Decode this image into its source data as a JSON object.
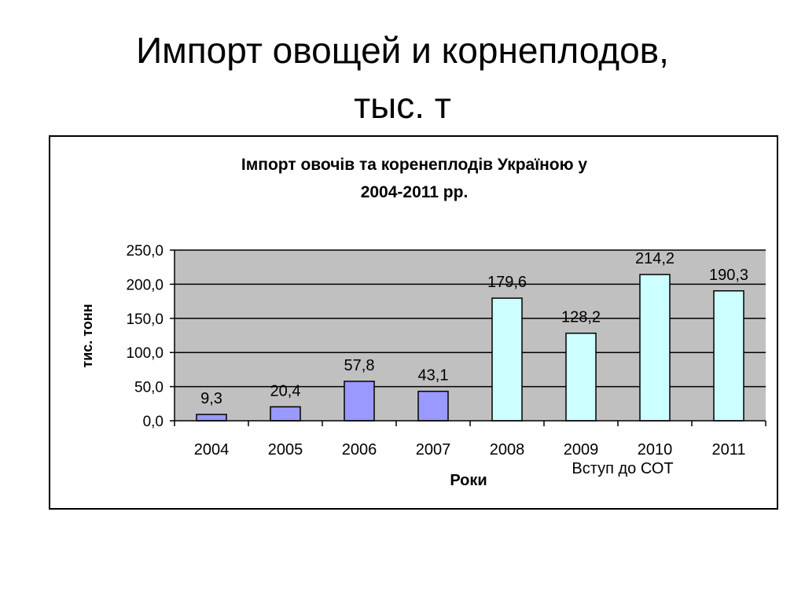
{
  "slide": {
    "title_line1": "Импорт овощей и корнеплодов,",
    "title_line2": "тыс. т"
  },
  "chart_data": {
    "type": "bar",
    "title_line1": "Імпорт овочів та коренеплодів Україною у",
    "title_line2": "2004-2011 рр.",
    "xlabel": "Роки",
    "ylabel": "тис. тонн",
    "categories": [
      "2004",
      "2005",
      "2006",
      "2007",
      "2008",
      "2009",
      "2010",
      "2011"
    ],
    "values": [
      9.3,
      20.4,
      57.8,
      43.1,
      179.6,
      128.2,
      214.2,
      190.3
    ],
    "value_labels": [
      "9,3",
      "20,4",
      "57,8",
      "43,1",
      "179,6",
      "128,2",
      "214,2",
      "190,3"
    ],
    "yticks": [
      {
        "value": 0,
        "label": "0,0"
      },
      {
        "value": 50,
        "label": "50,0"
      },
      {
        "value": 100,
        "label": "100,0"
      },
      {
        "value": 150,
        "label": "150,0"
      },
      {
        "value": 200,
        "label": "200,0"
      },
      {
        "value": 250,
        "label": "250,0"
      }
    ],
    "ylim": [
      0,
      250
    ],
    "grid": true,
    "legend": "none",
    "annotation": "Вступ до СОТ",
    "colors": {
      "plot_background": "#c0c0c0",
      "before": "#9999ff",
      "after": "#ccffff",
      "gridline": "#000000",
      "bar_stroke": "#000000"
    },
    "color_split_category": "2008"
  }
}
